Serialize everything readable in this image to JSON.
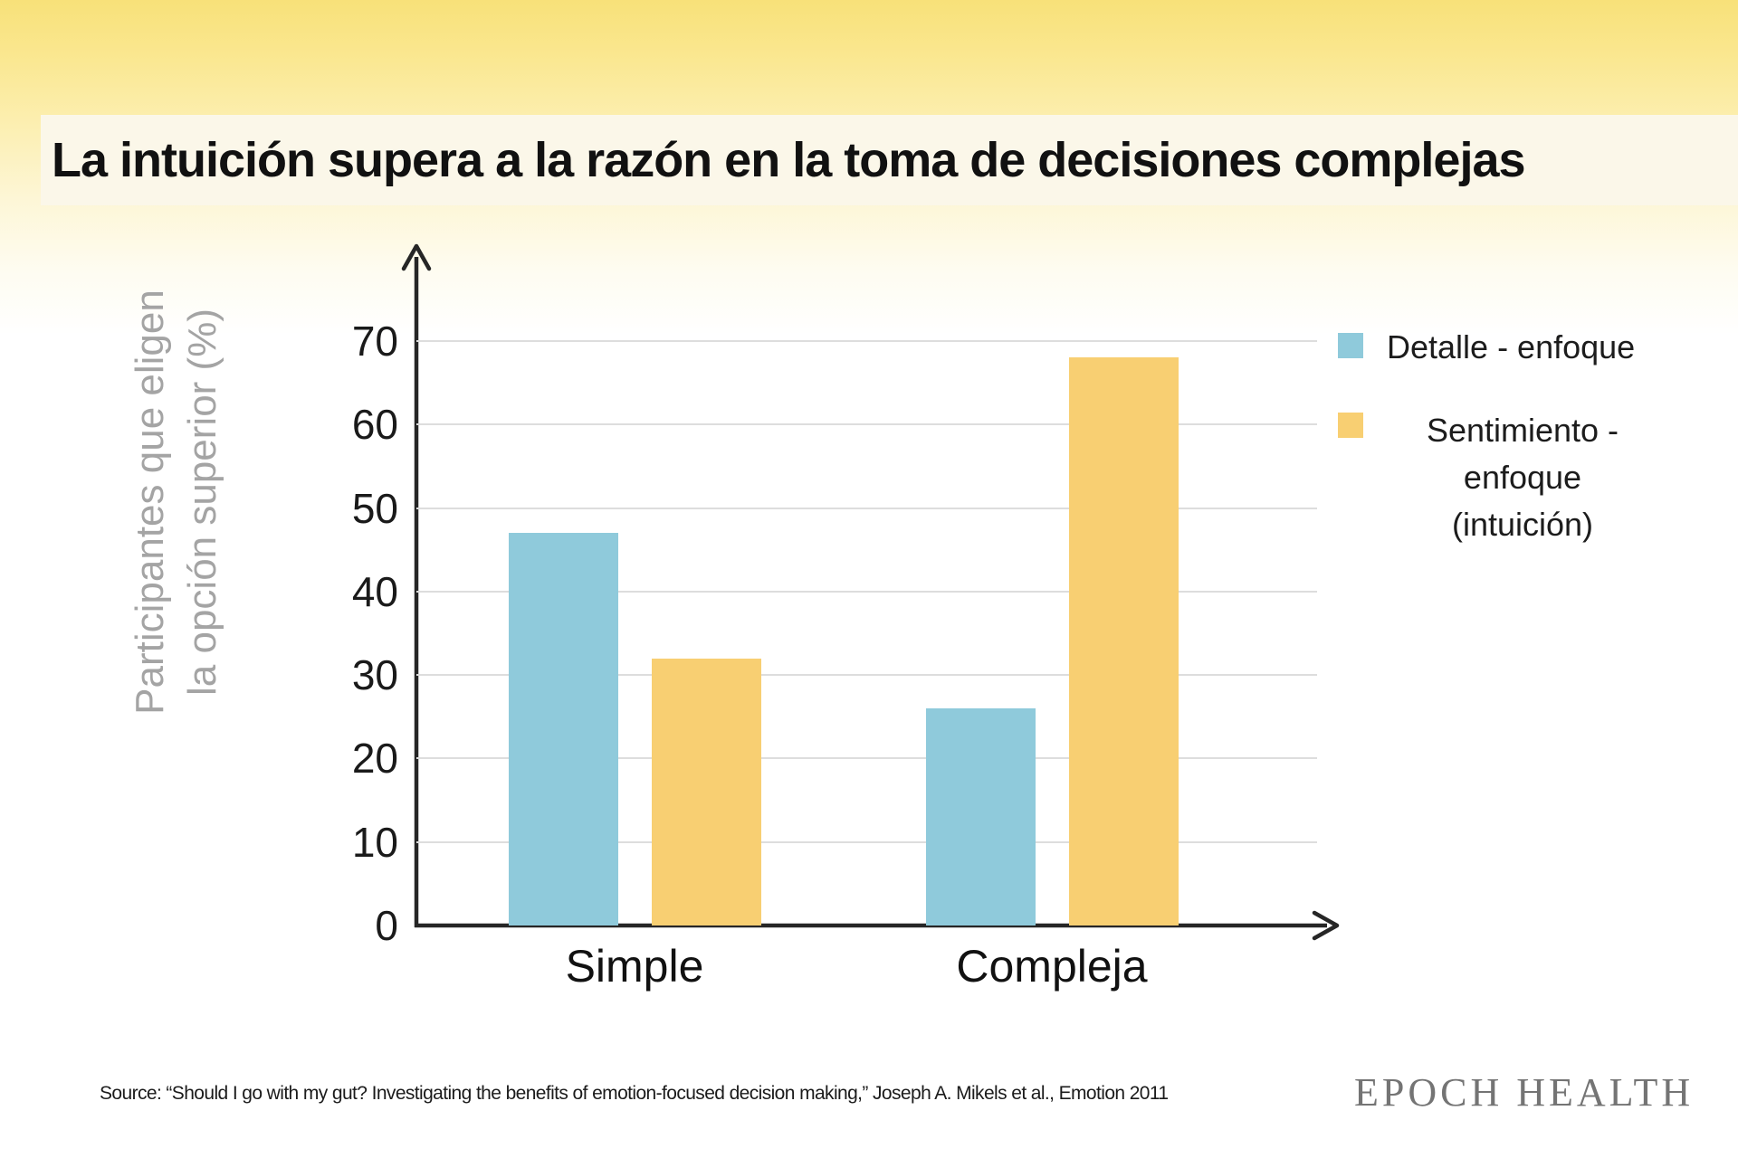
{
  "page": {
    "title": "La intuición supera a la razón en la toma de decisiones complejas",
    "source": "Source: “Should I go with my gut? Investigating the benefits of emotion-focused decision making,” Joseph A. Mikels et al., Emotion 2011",
    "brand": "EPOCH HEALTH"
  },
  "colors": {
    "detail_blue": "#8fcadb",
    "feeling_yellow": "#f8cf72",
    "axis": "#262626",
    "grid": "#dddddd",
    "ylabel_gray": "#a4a4a4",
    "banner_yellow_top": "#f8e179",
    "title_panel_cream": "#fbf7e9",
    "brand_gray": "#747474"
  },
  "chart_data": {
    "type": "bar",
    "title": "La intuición supera a la razón en la toma de decisiones complejas",
    "categories": [
      "Simple",
      "Compleja"
    ],
    "series": [
      {
        "name": "Detalle - enfoque",
        "color": "#8fcadb",
        "values": [
          47,
          26
        ]
      },
      {
        "name": "Sentimiento - enfoque (intuición)",
        "color": "#f8cf72",
        "values": [
          32,
          68
        ]
      }
    ],
    "xlabel": "",
    "ylabel": "Participantes que eligen la opción superior (%)",
    "ylabel_lines": [
      "Participantes que eligen",
      "la opción superior (%)"
    ],
    "yticks": [
      0,
      10,
      20,
      30,
      40,
      50,
      60,
      70
    ],
    "ylim": [
      0,
      70
    ],
    "grid": true,
    "legend_position": "right",
    "legend": [
      {
        "label": "Detalle - enfoque",
        "color": "#8fcadb"
      },
      {
        "label": "Sentimiento -\nenfoque\n(intuición)",
        "color": "#f8cf72"
      }
    ]
  }
}
